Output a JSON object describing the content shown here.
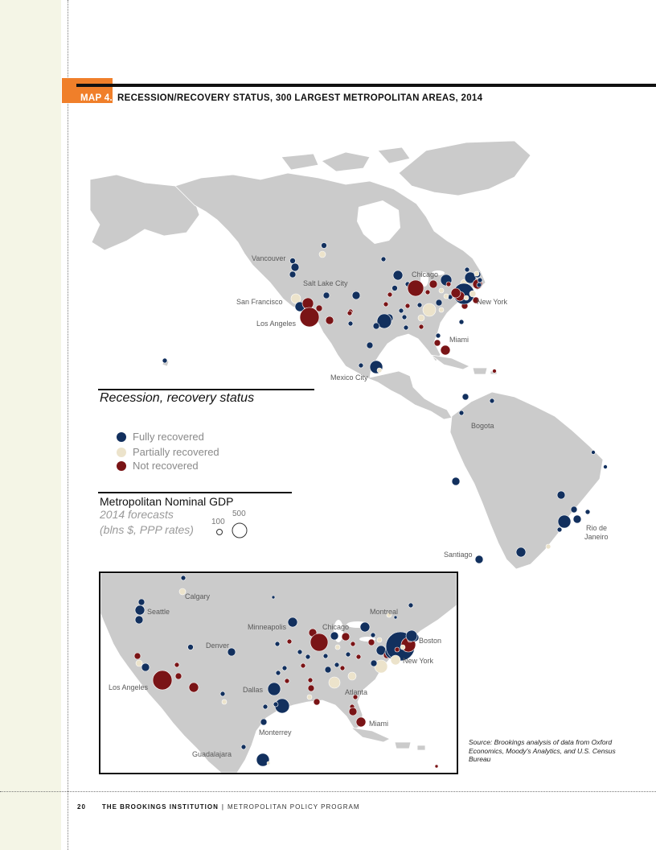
{
  "header": {
    "map_label": "MAP 4.",
    "title": "RECESSION/RECOVERY STATUS, 300 LARGEST METROPOLITAN AREAS, 2014"
  },
  "colors": {
    "fully_recovered": "#12305e",
    "partially_recovered": "#ece3cb",
    "not_recovered": "#7a1416",
    "land": "#cbcbcb",
    "accent": "#f07f2a"
  },
  "legend": {
    "title": "Recession, recovery status",
    "items": [
      {
        "label": "Fully recovered",
        "status": "full"
      },
      {
        "label": "Partially recovered",
        "status": "partial"
      },
      {
        "label": "Not recovered",
        "status": "not"
      }
    ]
  },
  "size_legend": {
    "title": "Metropolitan Nominal GDP",
    "subtitle_line1": "2014 forecasts",
    "subtitle_line2": "(blns $, PPP rates)",
    "small_label": "100",
    "large_label": "500"
  },
  "main_map_labels": {
    "vancouver": "Vancouver",
    "salt_lake_city": "Salt Lake City",
    "chicago": "Chicago",
    "san_francisco": "San Francisco",
    "new_york": "New York",
    "los_angeles": "Los Angeles",
    "miami": "Miami",
    "mexico_city": "Mexico City",
    "bogota": "Bogota",
    "rio_de_janeiro_line1": "Rio de",
    "rio_de_janeiro_line2": "Janeiro",
    "santiago": "Santiago"
  },
  "inset_labels": {
    "calgary": "Calgary",
    "seattle": "Seattle",
    "montreal": "Montreal",
    "minneapolis": "Minneapolis",
    "chicago": "Chicago",
    "denver": "Denver",
    "boston": "Boston",
    "new_york": "New York",
    "los_angeles": "Los Angeles",
    "dallas": "Dallas",
    "atlanta": "Atlanta",
    "miami": "Miami",
    "monterrey": "Monterrey",
    "guadalajara": "Guadalajara"
  },
  "source_note": "Source: Brookings analysis of data from Oxford Economics, Moody's Analytics, and U.S. Census Bureau",
  "footer": {
    "page_number": "20",
    "organization": "THE BROOKINGS INSTITUTION",
    "separator": "|",
    "program": "METROPOLITAN POLICY PROGRAM"
  }
}
